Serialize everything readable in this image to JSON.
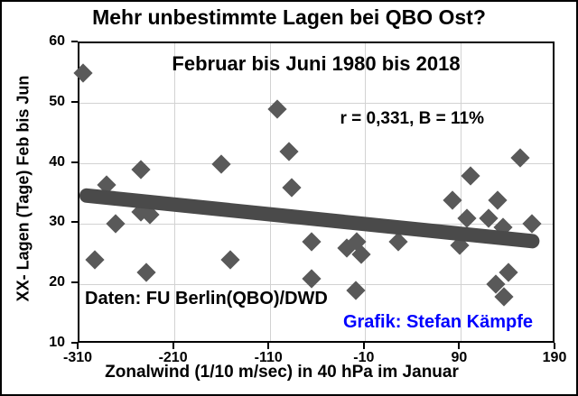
{
  "chart_data": {
    "type": "scatter",
    "title": "Mehr unbestimmte Lagen bei QBO Ost?",
    "subtitle": "Februar bis Juni 1980 bis 2018",
    "annotation": "r = 0,331, B = 11%",
    "source_note": "Daten: FU Berlin(QBO)/DWD",
    "credit": "Grafik: Stefan Kämpfe",
    "xlabel": "Zonalwind (1/10 m/sec) in 40 hPa im Januar",
    "ylabel": "XX- Lagen (Tage) Feb bis Jun",
    "xlim": [
      -310,
      190
    ],
    "ylim": [
      10,
      60
    ],
    "x_ticks": [
      "-310",
      "-210",
      "-110",
      "-10",
      "90",
      "190"
    ],
    "y_ticks": [
      "60",
      "50",
      "40",
      "30",
      "20",
      "10"
    ],
    "grid": true,
    "legend": "none",
    "marker": "diamond",
    "points": [
      [
        -306,
        55
      ],
      [
        -294,
        24
      ],
      [
        -282,
        36.5
      ],
      [
        -272,
        30
      ],
      [
        -246,
        39
      ],
      [
        -246,
        32
      ],
      [
        -240,
        22
      ],
      [
        -236,
        31.5
      ],
      [
        -161,
        40
      ],
      [
        -152,
        24
      ],
      [
        -103,
        49
      ],
      [
        -90,
        42
      ],
      [
        -87,
        36
      ],
      [
        -67,
        27
      ],
      [
        -67,
        21
      ],
      [
        -30,
        26
      ],
      [
        -20,
        19
      ],
      [
        -19,
        27
      ],
      [
        -15,
        25
      ],
      [
        24,
        27
      ],
      [
        81,
        34
      ],
      [
        89,
        26.5
      ],
      [
        96,
        31
      ],
      [
        100,
        38
      ],
      [
        119,
        31
      ],
      [
        127,
        20
      ],
      [
        128,
        34
      ],
      [
        134,
        29.5
      ],
      [
        135,
        18
      ],
      [
        140,
        22
      ],
      [
        152,
        41
      ],
      [
        164,
        30
      ]
    ],
    "trendline": {
      "x1": -310,
      "y1": 34.9,
      "x2": 172,
      "y2": 27.1
    },
    "colors": {
      "marker": "#595959",
      "trendline": "#4a4a4a",
      "grid": "#d2d2d2",
      "axis": "#000000",
      "credit_text": "#0000ff",
      "text": "#000000",
      "background": "#ffffff"
    }
  }
}
